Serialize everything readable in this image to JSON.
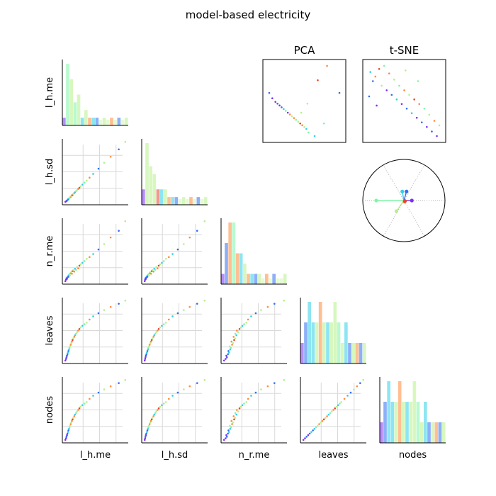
{
  "chart_data": {
    "type": "scatter",
    "title": "model-based electricity",
    "variables": [
      "l_h.me",
      "l_h.sd",
      "n_r.me",
      "leaves",
      "nodes"
    ],
    "panel_titles": {
      "pca": "PCA",
      "tsne": "t-SNE"
    },
    "grid": true,
    "colors": {
      "purple": "#7b2ff7",
      "blue": "#2e6ff2",
      "cyan": "#2fd0e8",
      "green": "#7ef5a8",
      "lightgreen": "#b6f08a",
      "orange": "#ff8a3a",
      "red": "#e8432a"
    },
    "points": [
      [
        4.2,
        0.8,
        1.6,
        1,
        1,
        "purple"
      ],
      [
        5.1,
        1.1,
        2.4,
        2,
        2,
        "purple"
      ],
      [
        5.6,
        1.3,
        3.1,
        3,
        3,
        "blue"
      ],
      [
        6.2,
        1.6,
        2.8,
        4,
        4,
        "purple"
      ],
      [
        6.8,
        1.9,
        3.6,
        5,
        5,
        "blue"
      ],
      [
        7.4,
        2.3,
        4.2,
        6,
        6,
        "cyan"
      ],
      [
        8.0,
        2.6,
        3.9,
        7,
        7,
        "blue"
      ],
      [
        8.7,
        3.0,
        4.8,
        8,
        8,
        "cyan"
      ],
      [
        9.3,
        3.3,
        5.2,
        9,
        9,
        "green"
      ],
      [
        10.0,
        3.7,
        4.6,
        10,
        10,
        "lightgreen"
      ],
      [
        10.8,
        4.1,
        5.8,
        11,
        11,
        "orange"
      ],
      [
        11.5,
        4.6,
        6.3,
        12,
        12,
        "lightgreen"
      ],
      [
        12.3,
        5.0,
        5.5,
        13,
        13,
        "orange"
      ],
      [
        13.1,
        5.5,
        6.9,
        14,
        14,
        "red"
      ],
      [
        14.0,
        6.0,
        7.4,
        15,
        15,
        "lightgreen"
      ],
      [
        15.2,
        6.7,
        6.6,
        16,
        16,
        "orange"
      ],
      [
        16.1,
        7.2,
        8.1,
        17,
        17,
        "cyan"
      ],
      [
        17.4,
        7.9,
        7.5,
        18,
        18,
        "green"
      ],
      [
        18.6,
        8.6,
        9.0,
        19,
        19,
        "lightgreen"
      ],
      [
        20.1,
        9.4,
        8.3,
        20,
        20,
        "orange"
      ],
      [
        21.5,
        10.2,
        9.7,
        21,
        21,
        "red"
      ],
      [
        23.0,
        11.1,
        10.4,
        22,
        22,
        "lightgreen"
      ],
      [
        25.2,
        12.3,
        11.2,
        23,
        23,
        "cyan"
      ],
      [
        27.8,
        13.6,
        12.1,
        24,
        24,
        "green"
      ],
      [
        30.5,
        15.0,
        13.3,
        25,
        25,
        "lightgreen"
      ],
      [
        34.0,
        17.0,
        14.2,
        27,
        27,
        "orange"
      ],
      [
        38.5,
        19.5,
        15.8,
        29,
        29,
        "cyan"
      ],
      [
        45.0,
        23.0,
        18.2,
        31,
        31,
        "blue"
      ],
      [
        52.0,
        27.0,
        21.0,
        33,
        33,
        "lightgreen"
      ],
      [
        60.0,
        31.0,
        24.5,
        35,
        35,
        "orange"
      ],
      [
        70.0,
        36.0,
        28.0,
        37,
        37,
        "blue"
      ],
      [
        78.0,
        41.0,
        33.0,
        39,
        39,
        "lightgreen"
      ]
    ],
    "pca": [
      [
        -2.2,
        0.9,
        "blue"
      ],
      [
        -1.9,
        0.6,
        "purple"
      ],
      [
        -1.6,
        0.4,
        "purple"
      ],
      [
        -1.4,
        0.3,
        "blue"
      ],
      [
        -1.2,
        0.2,
        "purple"
      ],
      [
        -1.0,
        0.1,
        "blue"
      ],
      [
        -0.8,
        0.0,
        "cyan"
      ],
      [
        -0.6,
        -0.1,
        "green"
      ],
      [
        -0.4,
        -0.2,
        "purple"
      ],
      [
        -0.2,
        -0.3,
        "orange"
      ],
      [
        0.0,
        -0.4,
        "lightgreen"
      ],
      [
        0.2,
        -0.5,
        "orange"
      ],
      [
        0.4,
        -0.6,
        "green"
      ],
      [
        0.6,
        -0.7,
        "lightgreen"
      ],
      [
        0.8,
        -0.8,
        "red"
      ],
      [
        1.0,
        -0.9,
        "orange"
      ],
      [
        1.2,
        -1.0,
        "lightgreen"
      ],
      [
        1.4,
        -1.1,
        "cyan"
      ],
      [
        1.6,
        -1.3,
        "green"
      ],
      [
        0.9,
        -0.2,
        "lightgreen"
      ],
      [
        1.5,
        0.3,
        "lightgreen"
      ],
      [
        2.5,
        1.6,
        "red"
      ],
      [
        3.4,
        2.4,
        "orange"
      ],
      [
        3.1,
        -0.8,
        "green"
      ],
      [
        4.6,
        0.9,
        "blue"
      ],
      [
        2.2,
        -1.5,
        "cyan"
      ]
    ],
    "tsne": [
      [
        -2.8,
        2.4,
        "cyan"
      ],
      [
        -2.6,
        1.8,
        "blue"
      ],
      [
        -2.4,
        2.1,
        "orange"
      ],
      [
        -2.1,
        2.6,
        "red"
      ],
      [
        -1.9,
        1.5,
        "lightgreen"
      ],
      [
        -1.7,
        2.8,
        "green"
      ],
      [
        -1.5,
        1.2,
        "purple"
      ],
      [
        -1.3,
        2.3,
        "orange"
      ],
      [
        -1.1,
        0.9,
        "blue"
      ],
      [
        -0.9,
        1.9,
        "lightgreen"
      ],
      [
        -0.7,
        0.6,
        "cyan"
      ],
      [
        -0.5,
        1.5,
        "green"
      ],
      [
        -0.3,
        0.3,
        "purple"
      ],
      [
        -0.1,
        1.2,
        "orange"
      ],
      [
        0.1,
        0.0,
        "blue"
      ],
      [
        0.3,
        0.9,
        "lightgreen"
      ],
      [
        0.5,
        -0.3,
        "cyan"
      ],
      [
        0.7,
        0.6,
        "red"
      ],
      [
        0.9,
        -0.6,
        "purple"
      ],
      [
        1.1,
        0.3,
        "orange"
      ],
      [
        1.3,
        -0.9,
        "blue"
      ],
      [
        1.5,
        0.0,
        "green"
      ],
      [
        1.7,
        -1.2,
        "purple"
      ],
      [
        1.9,
        -0.4,
        "lightgreen"
      ],
      [
        2.1,
        -1.5,
        "blue"
      ],
      [
        2.3,
        -0.8,
        "orange"
      ],
      [
        2.5,
        -1.8,
        "purple"
      ],
      [
        2.7,
        -1.1,
        "lightgreen"
      ],
      [
        -2.9,
        0.8,
        "blue"
      ],
      [
        -2.3,
        0.2,
        "purple"
      ],
      [
        0.0,
        2.5,
        "lightgreen"
      ],
      [
        1.0,
        1.8,
        "green"
      ]
    ],
    "biplot": [
      {
        "color": "cyan",
        "dx": -0.15,
        "dy": 0.85
      },
      {
        "color": "blue",
        "dx": 0.25,
        "dy": 0.85
      },
      {
        "color": "purple",
        "dx": 0.75,
        "dy": 0.0
      },
      {
        "color": "green",
        "dx": -2.6,
        "dy": 0.0
      },
      {
        "color": "lightgreen",
        "dx": -0.7,
        "dy": -1.0
      },
      {
        "color": "orange",
        "dx": 0.05,
        "dy": -0.1
      },
      {
        "color": "red",
        "dx": 0.1,
        "dy": -0.05
      }
    ]
  }
}
